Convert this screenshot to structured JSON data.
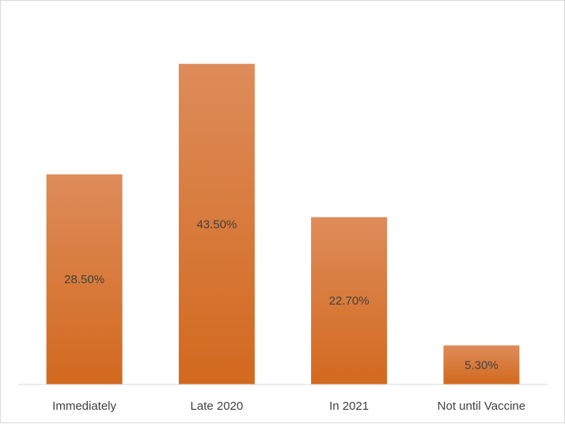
{
  "chart_data": {
    "type": "bar",
    "categories": [
      "Immediately",
      "Late 2020",
      "In 2021",
      "Not until Vaccine"
    ],
    "values": [
      28.5,
      43.5,
      22.7,
      5.3
    ],
    "data_labels": [
      "28.50%",
      "43.50%",
      "22.70%",
      "5.30%"
    ],
    "ylim": [
      0,
      50
    ],
    "title": "",
    "xlabel": "",
    "ylabel": "",
    "grid": false,
    "legend": "none",
    "colors": {
      "bar_top": "#de8c5a",
      "bar_bottom": "#d2691e",
      "axis": "#d9d9d9",
      "text": "#404040"
    }
  }
}
